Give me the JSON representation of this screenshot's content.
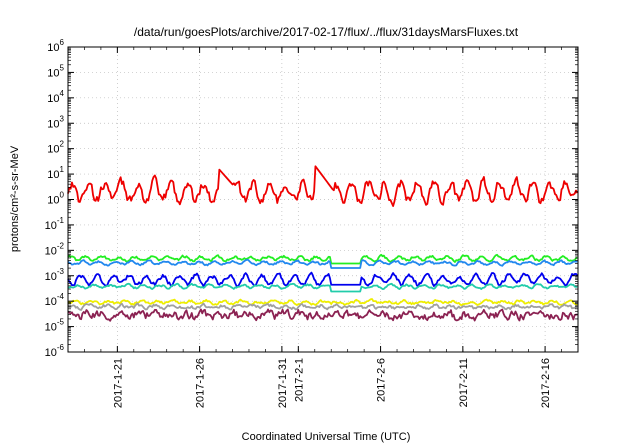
{
  "chart_data": {
    "type": "line",
    "title": "/data/run/goesPlots/archive/2017-02-17/flux/../flux/31daysMarsFluxes.txt",
    "xlabel": "Coordinated Universal Time (UTC)",
    "ylabel": "protons/cm²-s-sr-MeV",
    "y_scale": "log",
    "ylim": [
      1e-06,
      1000000.0
    ],
    "xlim": [
      "2017-01-18",
      "2017-02-18"
    ],
    "grid": true,
    "y_ticks": [
      {
        "base": "10",
        "exp": "-6"
      },
      {
        "base": "10",
        "exp": "-5"
      },
      {
        "base": "10",
        "exp": "-4"
      },
      {
        "base": "10",
        "exp": "-3"
      },
      {
        "base": "10",
        "exp": "-2"
      },
      {
        "base": "10",
        "exp": "-1"
      },
      {
        "base": "10",
        "exp": "0"
      },
      {
        "base": "10",
        "exp": "1"
      },
      {
        "base": "10",
        "exp": "2"
      },
      {
        "base": "10",
        "exp": "3"
      },
      {
        "base": "10",
        "exp": "4"
      },
      {
        "base": "10",
        "exp": "5"
      },
      {
        "base": "10",
        "exp": "6"
      }
    ],
    "x_ticks": [
      {
        "label": "2017-1-21",
        "day": 3
      },
      {
        "label": "2017-1-26",
        "day": 8
      },
      {
        "label": "2017-1-31",
        "day": 13
      },
      {
        "label": "2017-2-1",
        "day": 14
      },
      {
        "label": "2017-2-6",
        "day": 19
      },
      {
        "label": "2017-2-11",
        "day": 24
      },
      {
        "label": "2017-2-16",
        "day": 29
      }
    ],
    "series": [
      {
        "color": "#ee0000",
        "level": 2.0,
        "noise": 0.35,
        "daily": 0.35,
        "spikes": [
          {
            "day": 9.2,
            "value": 15
          },
          {
            "day": 15.0,
            "value": 22
          }
        ]
      },
      {
        "color": "#22ee22",
        "level": 0.0048,
        "noise": 0.1,
        "daily": 0.08,
        "gap": [
          16.0,
          17.8
        ]
      },
      {
        "color": "#2288ee",
        "level": 0.0032,
        "noise": 0.08,
        "daily": 0.06,
        "gap": [
          16.0,
          17.8
        ]
      },
      {
        "color": "#0000ee",
        "level": 0.0007,
        "noise": 0.16,
        "daily": 0.18,
        "gap": [
          16.0,
          17.8
        ]
      },
      {
        "color": "#22ccaa",
        "level": 0.00038,
        "noise": 0.08,
        "daily": 0.06,
        "gap": [
          16.0,
          17.8
        ]
      },
      {
        "color": "#eeee00",
        "level": 9e-05,
        "noise": 0.1,
        "daily": 0.05
      },
      {
        "color": "#a0a0a0",
        "level": 6e-05,
        "noise": 0.12,
        "daily": 0.05
      },
      {
        "color": "#8b2252",
        "level": 2.8e-05,
        "noise": 0.3,
        "daily": 0.05
      }
    ]
  }
}
